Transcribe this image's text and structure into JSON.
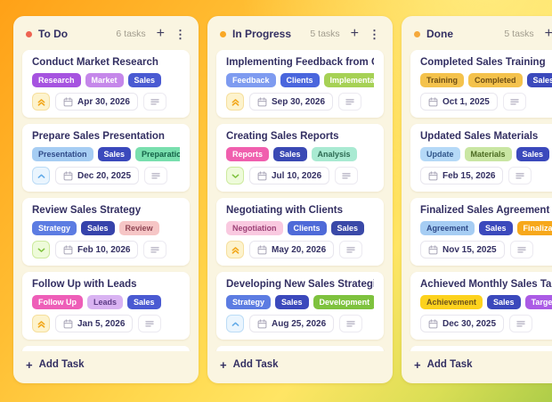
{
  "board": {
    "add_task_label": "Add Task",
    "icons": {
      "add": "+",
      "menu": "⋮"
    },
    "priority_styles": {
      "high": {
        "bg": "#fdf3cd",
        "border": "#f6df9e",
        "fg": "#f2a71b"
      },
      "medium": {
        "bg": "#eaf5fe",
        "border": "#bcdcf6",
        "fg": "#60a9e8"
      },
      "low": {
        "bg": "#eefbda",
        "border": "#cdea9f",
        "fg": "#7fc23e"
      }
    },
    "columns": [
      {
        "title": "To Do",
        "dot_color": "#ee6352",
        "count": "6 tasks",
        "peek_card": true,
        "cards": [
          {
            "title": "Conduct Market Research",
            "tags": [
              {
                "label": "Research",
                "bg": "#a653e0",
                "fg": "#ffffff"
              },
              {
                "label": "Market",
                "bg": "#c587ea",
                "fg": "#ffffff"
              },
              {
                "label": "Sales",
                "bg": "#4a5ad2",
                "fg": "#ffffff"
              }
            ],
            "priority": "high",
            "due": "Apr 30, 2026",
            "has_notes": true
          },
          {
            "title": "Prepare Sales Presentation",
            "tags": [
              {
                "label": "Presentation",
                "bg": "#a6cdf3",
                "fg": "#2f4a88"
              },
              {
                "label": "Sales",
                "bg": "#3b49bc",
                "fg": "#ffffff"
              },
              {
                "label": "Preparation",
                "bg": "#79dfae",
                "fg": "#156248"
              }
            ],
            "priority": "medium",
            "due": "Dec 20, 2025",
            "has_notes": true
          },
          {
            "title": "Review Sales Strategy",
            "tags": [
              {
                "label": "Strategy",
                "bg": "#5c7ce2",
                "fg": "#ffffff"
              },
              {
                "label": "Sales",
                "bg": "#3643ab",
                "fg": "#ffffff"
              },
              {
                "label": "Review",
                "bg": "#f6c6c6",
                "fg": "#8e4453"
              }
            ],
            "priority": "low",
            "due": "Feb 10, 2026",
            "has_notes": true
          },
          {
            "title": "Follow Up with Leads",
            "tags": [
              {
                "label": "Follow Up",
                "bg": "#ee5eb8",
                "fg": "#ffffff"
              },
              {
                "label": "Leads",
                "bg": "#d9b3f2",
                "fg": "#5c3b85"
              },
              {
                "label": "Sales",
                "bg": "#4a5ad2",
                "fg": "#ffffff"
              }
            ],
            "priority": "high",
            "due": "Jan 5, 2026",
            "has_notes": true
          }
        ]
      },
      {
        "title": "In Progress",
        "dot_color": "#f9a825",
        "count": "5 tasks",
        "peek_card": true,
        "cards": [
          {
            "title": "Implementing Feedback from Clients",
            "tags": [
              {
                "label": "Feedback",
                "bg": "#7e9bf0",
                "fg": "#ffffff"
              },
              {
                "label": "Clients",
                "bg": "#4a66dd",
                "fg": "#ffffff"
              },
              {
                "label": "Implementation",
                "bg": "#a6d155",
                "fg": "#ffffff"
              }
            ],
            "priority": "high",
            "due": "Sep 30, 2026",
            "has_notes": true
          },
          {
            "title": "Creating Sales Reports",
            "tags": [
              {
                "label": "Reports",
                "bg": "#f05fae",
                "fg": "#ffffff"
              },
              {
                "label": "Sales",
                "bg": "#3a49b4",
                "fg": "#ffffff"
              },
              {
                "label": "Analysis",
                "bg": "#a9ead2",
                "fg": "#2d6a53"
              }
            ],
            "priority": "low",
            "due": "Jul 10, 2026",
            "has_notes": true
          },
          {
            "title": "Negotiating with Clients",
            "tags": [
              {
                "label": "Negotiation",
                "bg": "#f9c9e0",
                "fg": "#9c4176"
              },
              {
                "label": "Clients",
                "bg": "#4e6ad8",
                "fg": "#ffffff"
              },
              {
                "label": "Sales",
                "bg": "#3a49a8",
                "fg": "#ffffff"
              }
            ],
            "priority": "high",
            "due": "May 20, 2026",
            "has_notes": true
          },
          {
            "title": "Developing New Sales Strategies",
            "tags": [
              {
                "label": "Strategy",
                "bg": "#5c7ce2",
                "fg": "#ffffff"
              },
              {
                "label": "Sales",
                "bg": "#3b49bc",
                "fg": "#ffffff"
              },
              {
                "label": "Development",
                "bg": "#7ec23e",
                "fg": "#ffffff"
              }
            ],
            "priority": "medium",
            "due": "Aug 25, 2026",
            "has_notes": true
          }
        ]
      },
      {
        "title": "Done",
        "dot_color": "#f5a93b",
        "count": "5 tasks",
        "peek_card": true,
        "cards": [
          {
            "title": "Completed Sales Training",
            "tags": [
              {
                "label": "Training",
                "bg": "#f4c24c",
                "fg": "#6e4e15"
              },
              {
                "label": "Completed",
                "bg": "#f4c24c",
                "fg": "#6e4e15"
              },
              {
                "label": "Sales",
                "bg": "#3b49bc",
                "fg": "#ffffff"
              }
            ],
            "priority": null,
            "due": "Oct 1, 2025",
            "has_notes": true
          },
          {
            "title": "Updated Sales Materials",
            "tags": [
              {
                "label": "Update",
                "bg": "#b5d9f7",
                "fg": "#31568a"
              },
              {
                "label": "Materials",
                "bg": "#c9e6a3",
                "fg": "#4c6b22"
              },
              {
                "label": "Sales",
                "bg": "#3b49bc",
                "fg": "#ffffff"
              }
            ],
            "priority": null,
            "due": "Feb 15, 2026",
            "has_notes": true
          },
          {
            "title": "Finalized Sales Agreement",
            "tags": [
              {
                "label": "Agreement",
                "bg": "#a6cdf3",
                "fg": "#2f4a88"
              },
              {
                "label": "Sales",
                "bg": "#3b49bc",
                "fg": "#ffffff"
              },
              {
                "label": "Finalization",
                "bg": "#f7a81b",
                "fg": "#ffffff"
              }
            ],
            "priority": null,
            "due": "Nov 15, 2025",
            "has_notes": true
          },
          {
            "title": "Achieved Monthly Sales Target",
            "tags": [
              {
                "label": "Achievement",
                "bg": "#fdd21d",
                "fg": "#6e531a"
              },
              {
                "label": "Sales",
                "bg": "#3b49bc",
                "fg": "#ffffff"
              },
              {
                "label": "Target",
                "bg": "#ab5be5",
                "fg": "#ffffff"
              }
            ],
            "priority": null,
            "due": "Dec 30, 2025",
            "has_notes": true
          }
        ]
      }
    ]
  }
}
